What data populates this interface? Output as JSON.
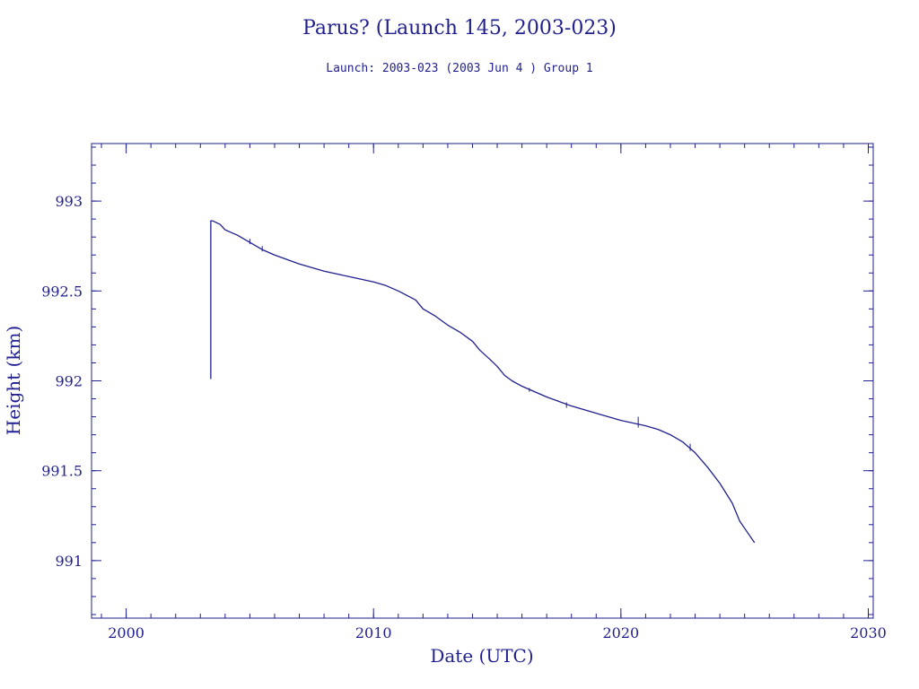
{
  "chart_data": {
    "type": "line",
    "title": "Parus? (Launch 145, 2003-023)",
    "subtitle": "Launch: 2003-023  (2003 Jun  4 )  Group 1",
    "xlabel": "Date (UTC)",
    "ylabel": "Height (km)",
    "xlim": [
      1998.6,
      2030.2
    ],
    "ylim": [
      990.68,
      993.32
    ],
    "x_ticks": [
      2000,
      2010,
      2020,
      2030
    ],
    "y_ticks": [
      991,
      991.5,
      992,
      992.5,
      993
    ],
    "x_tick_labels": [
      "2000",
      "2010",
      "2020",
      "2030"
    ],
    "y_tick_labels": [
      "991",
      "991.5",
      "992",
      "992.5",
      "993"
    ],
    "grid": false,
    "colors": {
      "line": "#1f1f8f",
      "axes": "#1f1f8f",
      "text": "#1f1f8f"
    },
    "series": [
      {
        "x": [
          2003.42,
          2003.42,
          2003.5,
          2003.8,
          2004.0,
          2004.5,
          2005.0,
          2005.5,
          2006.0,
          2007.0,
          2008.0,
          2009.0,
          2010.0,
          2010.5,
          2011.0,
          2011.7,
          2012.0,
          2012.5,
          2013.0,
          2013.5,
          2014.0,
          2014.3,
          2014.7,
          2015.0,
          2015.3,
          2015.6,
          2016.0,
          2016.5,
          2017.0,
          2018.0,
          2019.0,
          2020.0,
          2021.0,
          2021.5,
          2022.0,
          2022.5,
          2023.0,
          2023.5,
          2024.0,
          2024.5,
          2024.8,
          2025.0,
          2025.4
        ],
        "y": [
          992.01,
          992.89,
          992.89,
          992.87,
          992.84,
          992.81,
          992.77,
          992.73,
          992.7,
          992.65,
          992.61,
          992.58,
          992.55,
          992.53,
          992.5,
          992.45,
          992.4,
          992.36,
          992.31,
          992.27,
          992.22,
          992.17,
          992.12,
          992.08,
          992.03,
          992.0,
          991.97,
          991.94,
          991.91,
          991.86,
          991.82,
          991.78,
          991.75,
          991.73,
          991.7,
          991.66,
          991.6,
          991.52,
          991.43,
          991.32,
          991.22,
          991.18,
          991.1
        ]
      }
    ],
    "spikes": [
      {
        "x": 2005.0,
        "y0": 992.76,
        "y1": 992.79
      },
      {
        "x": 2005.5,
        "y0": 992.72,
        "y1": 992.75
      },
      {
        "x": 2016.3,
        "y0": 991.94,
        "y1": 991.96
      },
      {
        "x": 2017.8,
        "y0": 991.85,
        "y1": 991.88
      },
      {
        "x": 2020.7,
        "y0": 991.74,
        "y1": 991.8
      },
      {
        "x": 2022.8,
        "y0": 991.61,
        "y1": 991.65
      }
    ]
  }
}
